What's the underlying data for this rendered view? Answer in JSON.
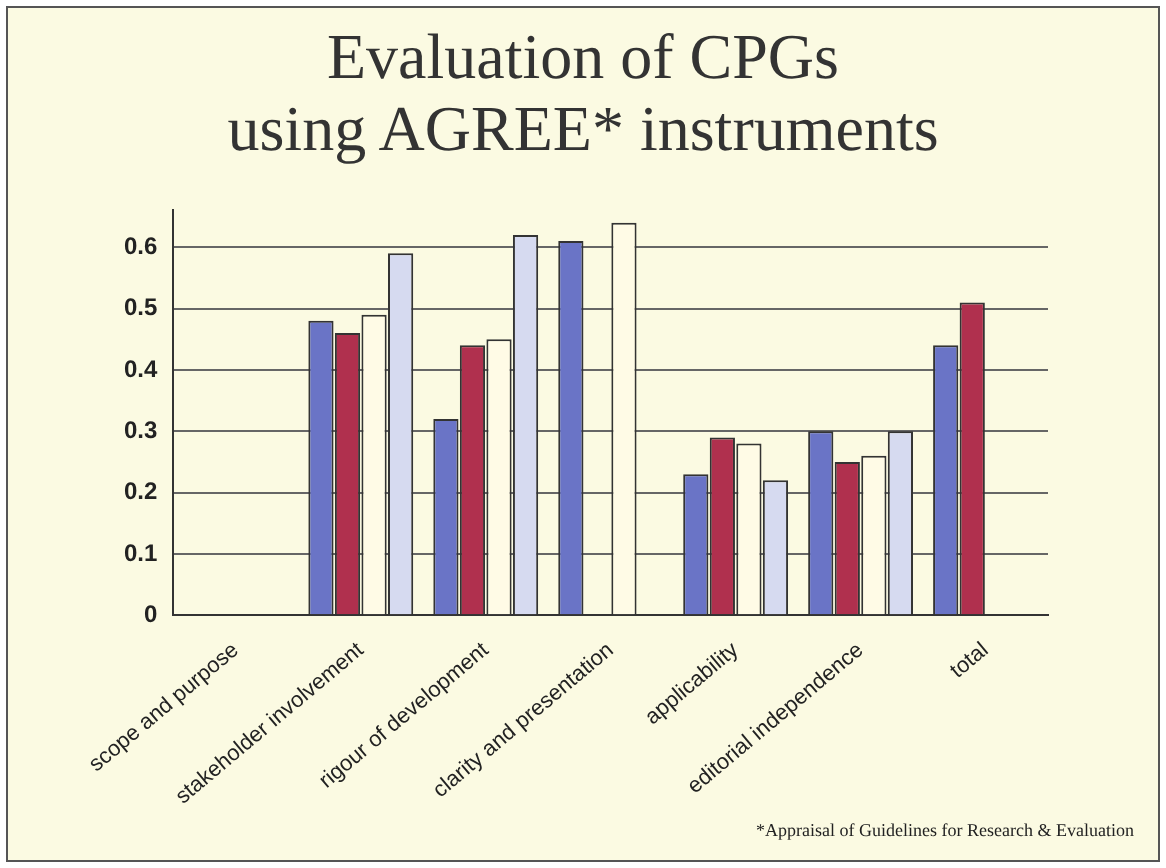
{
  "chart_data": {
    "type": "bar",
    "title": [
      "Evaluation of CPGs",
      "using AGREE* instruments"
    ],
    "categories": [
      "scope and purpose",
      "stakeholder involvement",
      "rigour of development",
      "clarity and presentation",
      "applicability",
      "editorial independence",
      "total"
    ],
    "series": [
      {
        "color": "#6a74c6",
        "values": [
          null,
          0.48,
          0.32,
          0.61,
          0.23,
          0.3,
          0.44
        ]
      },
      {
        "color": "#b0304e",
        "values": [
          null,
          0.46,
          0.44,
          null,
          0.29,
          0.25,
          0.51
        ]
      },
      {
        "color": "#fffbe6",
        "values": [
          null,
          0.49,
          0.45,
          0.64,
          0.28,
          0.26,
          null
        ]
      },
      {
        "color": "#d6daf0",
        "values": [
          null,
          0.59,
          0.62,
          null,
          0.22,
          0.3,
          null
        ]
      }
    ],
    "ylim": [
      0,
      0.66
    ],
    "yticks": [
      0,
      0.1,
      0.2,
      0.3,
      0.4,
      0.5,
      0.6
    ],
    "grid": "y",
    "legend": false,
    "annotations": [
      "*Appraisal of Guidelines for Research & Evaluation"
    ]
  }
}
